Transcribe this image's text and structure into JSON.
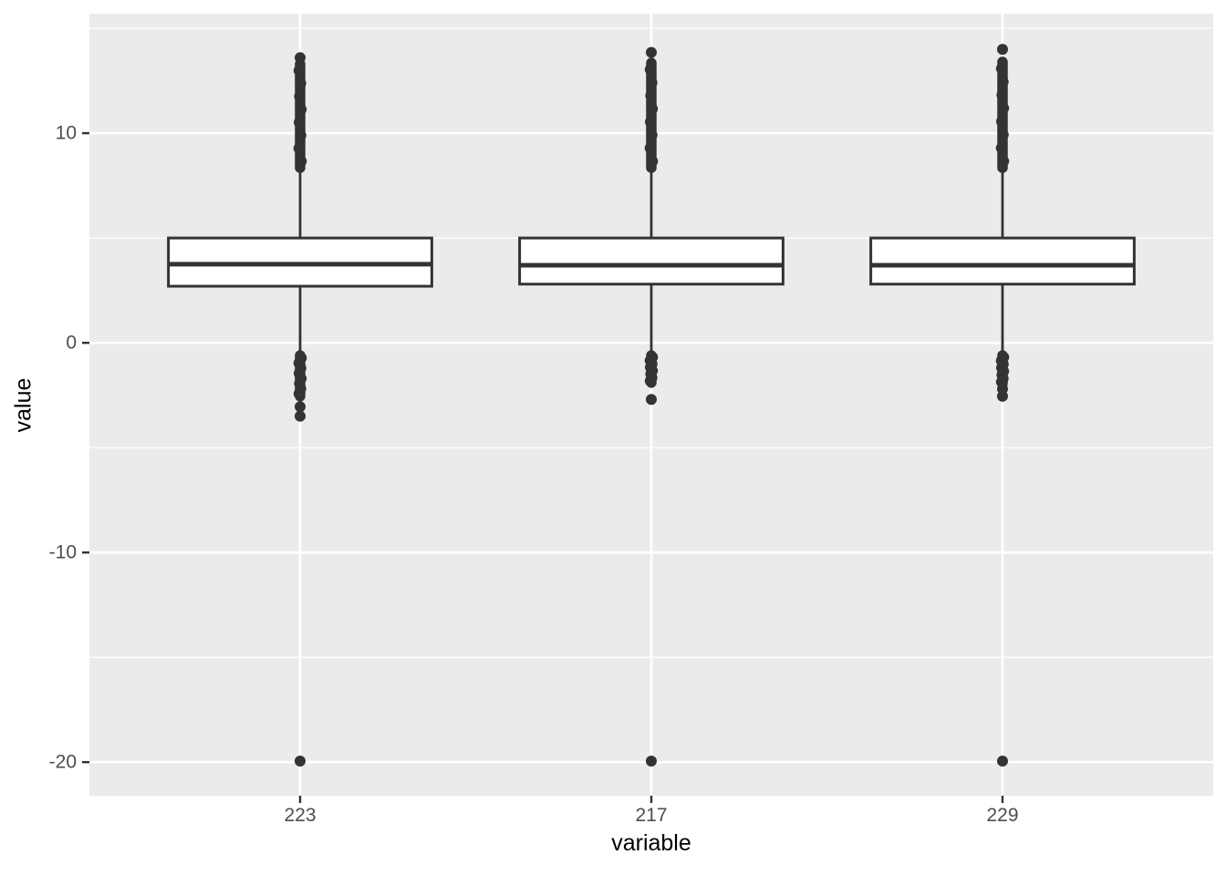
{
  "figure": {
    "background": "#FFFFFF",
    "panel_background": "#EBEBEB",
    "grid_color": "#FFFFFF",
    "box_fill": "#FFFFFF",
    "stroke_color": "#333333",
    "tick_color": "#333333",
    "tick_label_color": "#4D4D4D",
    "axis_title_color": "#000000"
  },
  "chart_data": {
    "type": "boxplot",
    "title": "",
    "xlabel": "variable",
    "ylabel": "value",
    "categories": [
      "223",
      "217",
      "229"
    ],
    "y_major_ticks": [
      10,
      0,
      -10,
      -20
    ],
    "y_minor_ticks": [
      15,
      5,
      -5,
      -15
    ],
    "ylim": [
      -21.6,
      15.7
    ],
    "grid": true,
    "legend": "none",
    "boxes": [
      {
        "label": "223",
        "q1": 2.7,
        "median": 3.75,
        "q3": 5.0,
        "whisker_low": -0.5,
        "whisker_high": 8.3,
        "outlier_cluster_high": [
          8.35,
          13.3
        ],
        "outlier_points_high": [
          13.6
        ],
        "outlier_cluster_low": [
          -0.6,
          -2.55
        ],
        "outlier_points_low": [
          -3.05,
          -3.5,
          -19.95
        ]
      },
      {
        "label": "217",
        "q1": 2.8,
        "median": 3.7,
        "q3": 5.0,
        "whisker_low": -0.5,
        "whisker_high": 8.3,
        "outlier_cluster_high": [
          8.35,
          13.35
        ],
        "outlier_points_high": [
          13.85
        ],
        "outlier_cluster_low": [
          -0.6,
          -1.9
        ],
        "outlier_points_low": [
          -2.7,
          -19.95
        ]
      },
      {
        "label": "229",
        "q1": 2.8,
        "median": 3.7,
        "q3": 5.0,
        "whisker_low": -0.5,
        "whisker_high": 8.3,
        "outlier_cluster_high": [
          8.35,
          13.4
        ],
        "outlier_points_high": [
          14.0
        ],
        "outlier_cluster_low": [
          -0.6,
          -1.95
        ],
        "outlier_points_low": [
          -2.2,
          -2.55,
          -19.95
        ]
      }
    ]
  }
}
